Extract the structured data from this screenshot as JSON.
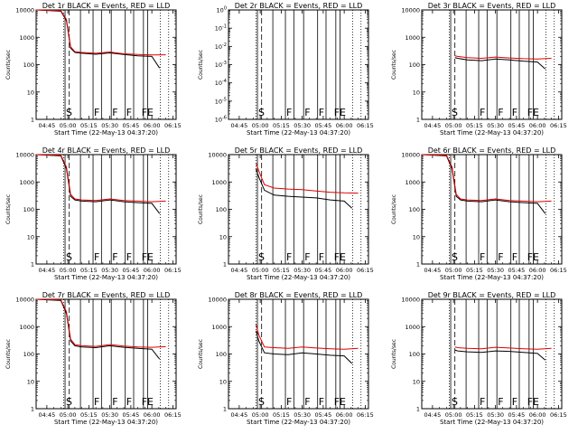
{
  "chart_data": {
    "type": "line",
    "layout": "3x3 grid",
    "colors": {
      "events": "#000000",
      "lld": "#e00000",
      "markers": "#000000"
    },
    "x_axis": {
      "tick_labels": [
        "04:45",
        "05:00",
        "05:15",
        "05:30",
        "05:45",
        "06:00",
        "06:15"
      ],
      "tick_minutes": [
        285,
        300,
        315,
        330,
        345,
        360,
        375
      ],
      "range_minutes": [
        277.33,
        377.33
      ],
      "xlabel": "Start Time (22-May-13 04:37:20)"
    },
    "ylabel": "Counts/sec",
    "yscale": "log",
    "markers": {
      "dashed_minutes": 301,
      "dotted_minutes": [
        297,
        366,
        372
      ],
      "solid_minutes": [
        298,
        309,
        318,
        324,
        331,
        341,
        347,
        354,
        357
      ],
      "flags": [
        {
          "minute": 298,
          "label": "S"
        },
        {
          "minute": 318,
          "label": "F"
        },
        {
          "minute": 331,
          "label": "F"
        },
        {
          "minute": 341,
          "label": "F"
        },
        {
          "minute": 352,
          "label": "F"
        },
        {
          "minute": 356,
          "label": "E"
        }
      ]
    },
    "panels": [
      {
        "title": "Det 1r  BLACK = Events, RED = LLD",
        "ytick_labels": [
          "1",
          "10",
          "100",
          "1000",
          "10000"
        ],
        "ylim": [
          1,
          10000
        ],
        "series": [
          {
            "color": "#000000",
            "x": [
              277.33,
              295,
              299,
              302,
              305,
              310,
              320,
              330,
              340,
              350,
              360,
              365.5
            ],
            "y": [
              10000,
              9000,
              4000,
              400,
              280,
              260,
              240,
              270,
              235,
              210,
              200,
              75
            ]
          },
          {
            "color": "#e00000",
            "x": [
              277.33,
              295,
              299,
              302,
              305,
              310,
              320,
              330,
              340,
              350,
              360,
              370
            ],
            "y": [
              10000,
              9500,
              4500,
              450,
              300,
              280,
              260,
              290,
              250,
              235,
              225,
              230
            ]
          }
        ]
      },
      {
        "title": "Det 2r  BLACK = Events, RED = LLD",
        "ytick_labels": [
          "10^-6",
          "10^-5",
          "10^-4",
          "10^-3",
          "10^-2",
          "10^-1",
          "10^0"
        ],
        "ylim": [
          1e-06,
          1
        ],
        "series": []
      },
      {
        "title": "Det 3r  BLACK = Events, RED = LLD",
        "ytick_labels": [
          "1",
          "10",
          "100",
          "1000",
          "10000"
        ],
        "ylim": [
          1,
          10000
        ],
        "series": [
          {
            "color": "#000000",
            "x": [
              301,
              303,
              310,
              320,
              330,
              340,
              350,
              360,
              365.5
            ],
            "y": [
              180,
              170,
              150,
              140,
              160,
              150,
              135,
              125,
              70
            ]
          },
          {
            "color": "#e00000",
            "x": [
              301,
              303,
              310,
              320,
              330,
              340,
              350,
              360,
              370
            ],
            "y": [
              210,
              200,
              180,
              170,
              190,
              175,
              165,
              160,
              170
            ]
          }
        ]
      },
      {
        "title": "Det 4r  BLACK = Events, RED = LLD",
        "ytick_labels": [
          "1",
          "10",
          "100",
          "1000",
          "10000"
        ],
        "ylim": [
          1,
          10000
        ],
        "series": [
          {
            "color": "#000000",
            "x": [
              277.33,
              295,
              299,
              302,
              305,
              310,
              320,
              330,
              340,
              350,
              360,
              365.5
            ],
            "y": [
              10000,
              9000,
              3000,
              300,
              220,
              200,
              190,
              220,
              190,
              175,
              165,
              70
            ]
          },
          {
            "color": "#e00000",
            "x": [
              277.33,
              295,
              299,
              302,
              305,
              310,
              320,
              330,
              340,
              350,
              360,
              370
            ],
            "y": [
              10000,
              9500,
              3500,
              350,
              240,
              220,
              210,
              240,
              210,
              200,
              190,
              200
            ]
          }
        ]
      },
      {
        "title": "Det 5r  BLACK = Events, RED = LLD",
        "ytick_labels": [
          "1",
          "10",
          "100",
          "1000",
          "10000"
        ],
        "ylim": [
          1,
          10000
        ],
        "series": [
          {
            "color": "#000000",
            "x": [
              297,
              299,
              303,
              310,
              320,
              330,
              340,
              350,
              360,
              365.5
            ],
            "y": [
              3000,
              1500,
              500,
              330,
              300,
              280,
              260,
              220,
              200,
              110
            ]
          },
          {
            "color": "#e00000",
            "x": [
              297,
              299,
              303,
              310,
              320,
              330,
              340,
              350,
              360,
              370
            ],
            "y": [
              5000,
              2500,
              800,
              600,
              550,
              520,
              470,
              420,
              400,
              390
            ]
          }
        ]
      },
      {
        "title": "Det 6r  BLACK = Events, RED = LLD",
        "ytick_labels": [
          "1",
          "10",
          "100",
          "1000",
          "10000"
        ],
        "ylim": [
          1,
          10000
        ],
        "series": [
          {
            "color": "#000000",
            "x": [
              277.33,
              295,
              299,
              302,
              305,
              310,
              320,
              330,
              340,
              350,
              360,
              365.5
            ],
            "y": [
              10000,
              9000,
              3000,
              300,
              220,
              200,
              190,
              220,
              190,
              175,
              165,
              70
            ]
          },
          {
            "color": "#e00000",
            "x": [
              277.33,
              295,
              299,
              302,
              305,
              310,
              320,
              330,
              340,
              350,
              360,
              370
            ],
            "y": [
              10000,
              9500,
              3500,
              350,
              240,
              220,
              210,
              240,
              210,
              200,
              190,
              200
            ]
          }
        ]
      },
      {
        "title": "Det 7r  BLACK = Events, RED = LLD",
        "ytick_labels": [
          "1",
          "10",
          "100",
          "1000",
          "10000"
        ],
        "ylim": [
          1,
          10000
        ],
        "series": [
          {
            "color": "#000000",
            "x": [
              277.33,
              295,
              299,
              302,
              305,
              310,
              320,
              330,
              340,
              350,
              360,
              365.5
            ],
            "y": [
              10000,
              9000,
              3000,
              300,
              200,
              180,
              170,
              200,
              175,
              160,
              150,
              65
            ]
          },
          {
            "color": "#e00000",
            "x": [
              277.33,
              295,
              299,
              302,
              305,
              310,
              320,
              330,
              340,
              350,
              360,
              370
            ],
            "y": [
              10000,
              9500,
              3500,
              350,
              220,
              200,
              190,
              220,
              195,
              180,
              175,
              185
            ]
          }
        ]
      },
      {
        "title": "Det 8r  BLACK = Events, RED = LLD",
        "ytick_labels": [
          "1",
          "10",
          "100",
          "1000",
          "10000"
        ],
        "ylim": [
          1,
          10000
        ],
        "series": [
          {
            "color": "#000000",
            "x": [
              297,
              299,
              303,
              310,
              320,
              330,
              340,
              350,
              360,
              365.5
            ],
            "y": [
              700,
              300,
              110,
              100,
              95,
              110,
              100,
              90,
              85,
              45
            ]
          },
          {
            "color": "#e00000",
            "x": [
              297,
              299,
              303,
              310,
              320,
              330,
              340,
              350,
              360,
              370
            ],
            "y": [
              1200,
              500,
              180,
              170,
              160,
              180,
              165,
              155,
              150,
              160
            ]
          }
        ]
      },
      {
        "title": "Det 9r  BLACK = Events, RED = LLD",
        "ytick_labels": [
          "1",
          "10",
          "100",
          "1000",
          "10000"
        ],
        "ylim": [
          1,
          10000
        ],
        "series": [
          {
            "color": "#000000",
            "x": [
              301,
              303,
              310,
              320,
              330,
              340,
              350,
              360,
              365.5
            ],
            "y": [
              140,
              130,
              120,
              115,
              130,
              125,
              115,
              105,
              60
            ]
          },
          {
            "color": "#e00000",
            "x": [
              301,
              303,
              310,
              320,
              330,
              340,
              350,
              360,
              370
            ],
            "y": [
              180,
              170,
              160,
              155,
              175,
              165,
              155,
              150,
              160
            ]
          }
        ]
      }
    ]
  }
}
